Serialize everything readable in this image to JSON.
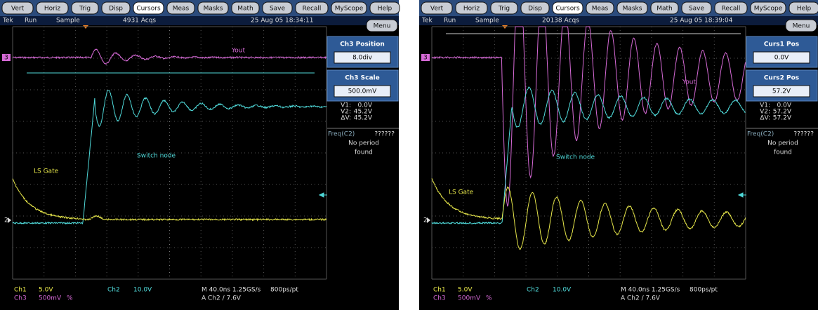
{
  "panels": [
    {
      "buttons": [
        "Vert",
        "Horiz",
        "Trig",
        "Disp",
        "Cursors",
        "Meas",
        "Masks",
        "Math",
        "Save",
        "Recall",
        "MyScope",
        "Help"
      ],
      "active_button": "Cursors",
      "status": {
        "brand": "Tek",
        "state": "Run",
        "mode": "Sample",
        "acqs": "4931 Acqs",
        "datetime": "25 Aug 05 18:34:11",
        "menu": "Menu"
      },
      "side": {
        "items": [
          {
            "title": "Ch3 Position",
            "value": "8.0div"
          },
          {
            "title": "Ch3 Scale",
            "value": "500.0mV"
          }
        ],
        "cursors": [
          {
            "label": "V1:",
            "value": "0.0V"
          },
          {
            "label": "V2:",
            "value": "45.2V"
          },
          {
            "label": "ΔV:",
            "value": "45.2V"
          }
        ],
        "freq": {
          "label": "Freq(C2)",
          "value": "??????",
          "note": [
            "No period",
            "found"
          ]
        }
      },
      "traces": {
        "ch3": "Yout",
        "ch2": "Switch node",
        "ch1": "LS Gate",
        "marker_ch3": "3",
        "marker_ch2": "2"
      },
      "readouts": {
        "ch1": [
          "Ch1",
          "5.0V"
        ],
        "ch2": [
          "Ch2",
          "10.0V"
        ],
        "ch3": [
          "Ch3",
          "500mV",
          "%"
        ],
        "timebase": [
          "M 40.0ns 1.25GS/s",
          "800ps/pt"
        ],
        "trigger": "A  Ch2 / 7.6V"
      }
    },
    {
      "buttons": [
        "Vert",
        "Horiz",
        "Trig",
        "Disp",
        "Cursors",
        "Meas",
        "Masks",
        "Math",
        "Save",
        "Recall",
        "MyScope",
        "Help"
      ],
      "active_button": "Cursors",
      "status": {
        "brand": "Tek",
        "state": "Run",
        "mode": "Sample",
        "acqs": "20138 Acqs",
        "datetime": "25 Aug 05 18:39:04",
        "menu": "Menu"
      },
      "side": {
        "items": [
          {
            "title": "Curs1 Pos",
            "value": "0.0V"
          },
          {
            "title": "Curs2 Pos",
            "value": "57.2V"
          }
        ],
        "cursors": [
          {
            "label": "V1:",
            "value": "0.0V"
          },
          {
            "label": "V2:",
            "value": "57.2V"
          },
          {
            "label": "ΔV:",
            "value": "57.2V"
          }
        ],
        "freq": {
          "label": "Freq(C2)",
          "value": "??????",
          "note": [
            "No period",
            "found"
          ]
        }
      },
      "traces": {
        "ch3": "Yout",
        "ch2": "Switch node",
        "ch1": "LS Gate",
        "marker_ch3": "3",
        "marker_ch2": "2"
      },
      "readouts": {
        "ch1": [
          "Ch1",
          "5.0V"
        ],
        "ch2": [
          "Ch2",
          "10.0V"
        ],
        "ch3": [
          "Ch3",
          "500mV",
          "%"
        ],
        "timebase": [
          "M 40.0ns 1.25GS/s",
          "800ps/pt"
        ],
        "trigger": "A  Ch2 / 7.6V"
      }
    }
  ]
}
